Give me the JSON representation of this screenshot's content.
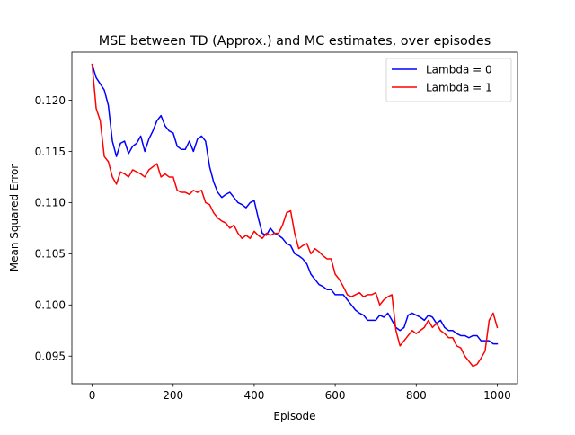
{
  "chart_data": {
    "type": "line",
    "title": "MSE between TD (Approx.) and MC estimates, over episodes",
    "xlabel": "Episode",
    "ylabel": "Mean Squared Error",
    "xlim": [
      -50,
      1050
    ],
    "ylim": [
      0.0923,
      0.1247
    ],
    "xticks": [
      0,
      200,
      400,
      600,
      800,
      1000
    ],
    "yticks": [
      0.095,
      0.1,
      0.105,
      0.11,
      0.115,
      0.12
    ],
    "ytick_format": 3,
    "grid": false,
    "legend_position": "top-right",
    "series": [
      {
        "name": "Lambda = 0",
        "color": "#0000ff",
        "x": [
          0,
          10,
          20,
          30,
          40,
          50,
          60,
          70,
          80,
          90,
          100,
          110,
          120,
          130,
          140,
          150,
          160,
          170,
          180,
          190,
          200,
          210,
          220,
          230,
          240,
          250,
          260,
          270,
          280,
          290,
          300,
          310,
          320,
          330,
          340,
          350,
          360,
          370,
          380,
          390,
          400,
          410,
          420,
          430,
          440,
          450,
          460,
          470,
          480,
          490,
          500,
          510,
          520,
          530,
          540,
          550,
          560,
          570,
          580,
          590,
          600,
          610,
          620,
          630,
          640,
          650,
          660,
          670,
          680,
          690,
          700,
          710,
          720,
          730,
          740,
          750,
          760,
          770,
          780,
          790,
          800,
          810,
          820,
          830,
          840,
          850,
          860,
          870,
          880,
          890,
          900,
          910,
          920,
          930,
          940,
          950,
          960,
          970,
          980,
          990,
          1000
        ],
        "y": [
          0.1235,
          0.1222,
          0.1216,
          0.121,
          0.1195,
          0.116,
          0.1145,
          0.1158,
          0.116,
          0.1148,
          0.1155,
          0.1158,
          0.1165,
          0.115,
          0.1162,
          0.117,
          0.118,
          0.1185,
          0.1175,
          0.117,
          0.1168,
          0.1155,
          0.1152,
          0.1152,
          0.116,
          0.115,
          0.1162,
          0.1165,
          0.116,
          0.1135,
          0.112,
          0.111,
          0.1105,
          0.1108,
          0.111,
          0.1105,
          0.11,
          0.1098,
          0.1095,
          0.11,
          0.1102,
          0.1085,
          0.107,
          0.1068,
          0.1075,
          0.107,
          0.1068,
          0.1065,
          0.106,
          0.1058,
          0.105,
          0.1048,
          0.1045,
          0.104,
          0.103,
          0.1025,
          0.102,
          0.1018,
          0.1015,
          0.1015,
          0.101,
          0.101,
          0.101,
          0.1005,
          0.1,
          0.0995,
          0.0992,
          0.099,
          0.0985,
          0.0985,
          0.0985,
          0.099,
          0.0988,
          0.0992,
          0.0985,
          0.0978,
          0.0975,
          0.0978,
          0.099,
          0.0992,
          0.099,
          0.0988,
          0.0985,
          0.099,
          0.0988,
          0.0982,
          0.0985,
          0.0978,
          0.0975,
          0.0975,
          0.0972,
          0.097,
          0.097,
          0.0968,
          0.097,
          0.097,
          0.0965,
          0.0965,
          0.0965,
          0.0962,
          0.0962
        ]
      },
      {
        "name": "Lambda = 1",
        "color": "#ff0000",
        "x": [
          0,
          10,
          20,
          30,
          40,
          50,
          60,
          70,
          80,
          90,
          100,
          110,
          120,
          130,
          140,
          150,
          160,
          170,
          180,
          190,
          200,
          210,
          220,
          230,
          240,
          250,
          260,
          270,
          280,
          290,
          300,
          310,
          320,
          330,
          340,
          350,
          360,
          370,
          380,
          390,
          400,
          410,
          420,
          430,
          440,
          450,
          460,
          470,
          480,
          490,
          500,
          510,
          520,
          530,
          540,
          550,
          560,
          570,
          580,
          590,
          600,
          610,
          620,
          630,
          640,
          650,
          660,
          670,
          680,
          690,
          700,
          710,
          720,
          730,
          740,
          750,
          760,
          770,
          780,
          790,
          800,
          810,
          820,
          830,
          840,
          850,
          860,
          870,
          880,
          890,
          900,
          910,
          920,
          930,
          940,
          950,
          960,
          970,
          980,
          990,
          1000
        ],
        "y": [
          0.1235,
          0.1192,
          0.118,
          0.1145,
          0.114,
          0.1125,
          0.1118,
          0.113,
          0.1128,
          0.1125,
          0.1132,
          0.113,
          0.1128,
          0.1125,
          0.1132,
          0.1135,
          0.1138,
          0.1125,
          0.1128,
          0.1125,
          0.1125,
          0.1112,
          0.111,
          0.111,
          0.1108,
          0.1112,
          0.111,
          0.1112,
          0.11,
          0.1098,
          0.109,
          0.1085,
          0.1082,
          0.108,
          0.1075,
          0.1078,
          0.107,
          0.1065,
          0.1068,
          0.1065,
          0.1072,
          0.1068,
          0.1065,
          0.107,
          0.1068,
          0.107,
          0.107,
          0.1078,
          0.109,
          0.1092,
          0.107,
          0.1055,
          0.1058,
          0.106,
          0.105,
          0.1055,
          0.1052,
          0.1048,
          0.1045,
          0.1045,
          0.103,
          0.1025,
          0.1018,
          0.101,
          0.1008,
          0.101,
          0.1012,
          0.1008,
          0.101,
          0.101,
          0.1012,
          0.1,
          0.1005,
          0.1008,
          0.101,
          0.0975,
          0.096,
          0.0965,
          0.097,
          0.0975,
          0.0972,
          0.0975,
          0.0978,
          0.0985,
          0.0978,
          0.0982,
          0.0975,
          0.0972,
          0.0968,
          0.0968,
          0.096,
          0.0958,
          0.095,
          0.0945,
          0.094,
          0.0942,
          0.0948,
          0.0955,
          0.0985,
          0.0992,
          0.0978
        ]
      }
    ]
  }
}
